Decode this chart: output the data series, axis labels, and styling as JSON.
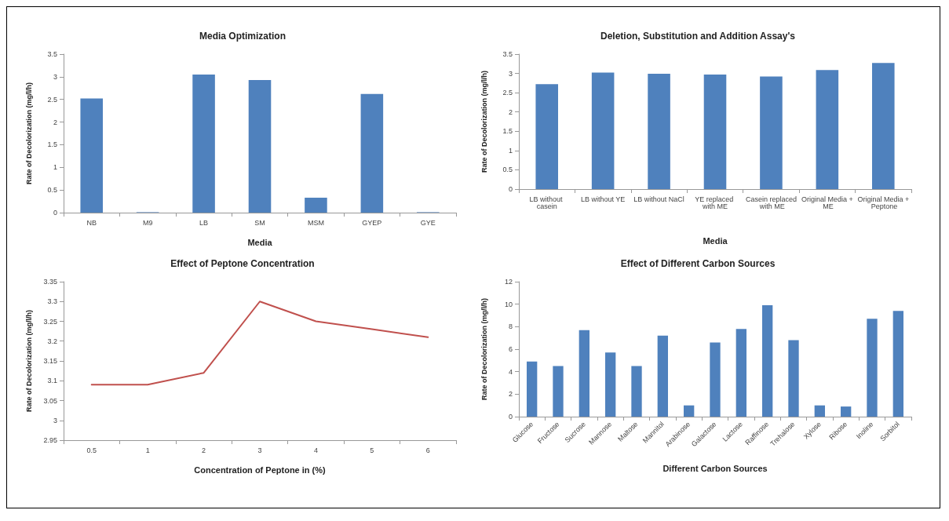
{
  "chart_data": [
    {
      "type": "bar",
      "title": "Media Optimization",
      "xlabel": "Media",
      "ylabel": "Rate of Decolorization (mg/l/h)",
      "categories": [
        "NB",
        "M9",
        "LB",
        "SM",
        "MSM",
        "GYEP",
        "GYE"
      ],
      "color": "#4f81bd",
      "values": [
        2.52,
        0.01,
        3.05,
        2.93,
        0.33,
        2.62,
        0.01
      ],
      "ylim": [
        0,
        3.5
      ],
      "yticks": [
        0,
        0.5,
        1,
        1.5,
        2,
        2.5,
        3,
        3.5
      ]
    },
    {
      "type": "bar",
      "title": "Deletion, Substitution and Addition Assay's",
      "xlabel": "Media",
      "ylabel": "Rate of Decolorization (mg/l/h)",
      "categories": [
        "LB without casein",
        "LB without YE",
        "LB without NaCl",
        "YE replaced with ME",
        "Casein replaced with ME",
        "Original Media + ME",
        "Original Media + Peptone"
      ],
      "color": "#4f81bd",
      "values": [
        2.72,
        3.02,
        2.99,
        2.97,
        2.92,
        3.09,
        3.27
      ],
      "ylim": [
        0,
        3.5
      ],
      "yticks": [
        0,
        0.5,
        1,
        1.5,
        2,
        2.5,
        3,
        3.5
      ]
    },
    {
      "type": "line",
      "title": "Effect of Peptone Concentration",
      "xlabel": "Concentration of Peptone in (%)",
      "ylabel": "Rate of Decolorization (mg/l/h)",
      "categories": [
        "0.5",
        "1",
        "2",
        "3",
        "4",
        "5",
        "6"
      ],
      "color": "#c0504d",
      "values": [
        3.09,
        3.09,
        3.12,
        3.3,
        3.25,
        3.23,
        3.21
      ],
      "ylim": [
        2.95,
        3.35
      ],
      "yticks": [
        2.95,
        3,
        3.05,
        3.1,
        3.15,
        3.2,
        3.25,
        3.3,
        3.35
      ],
      "marker": "none",
      "line_style": "solid"
    },
    {
      "type": "bar",
      "title": "Effect of Different Carbon Sources",
      "xlabel": "Different Carbon Sources",
      "ylabel": "Rate of Decolorization (mg/l/h)",
      "categories": [
        "Glucose",
        "Fructose",
        "Sucrose",
        "Mannose",
        "Maltose",
        "Mannitol",
        "Arabinose",
        "Galactose",
        "Lactose",
        "Raffinose",
        "Trehalose",
        "Xylose",
        "Ribose",
        "Inoline",
        "Sorbitol"
      ],
      "color": "#4f81bd",
      "values": [
        4.9,
        4.5,
        7.7,
        5.7,
        4.5,
        7.2,
        1.0,
        6.6,
        7.8,
        9.9,
        6.8,
        1.0,
        0.9,
        8.7,
        9.4
      ],
      "ylim": [
        0,
        12
      ],
      "yticks": [
        0,
        2,
        4,
        6,
        8,
        10,
        12
      ]
    }
  ]
}
